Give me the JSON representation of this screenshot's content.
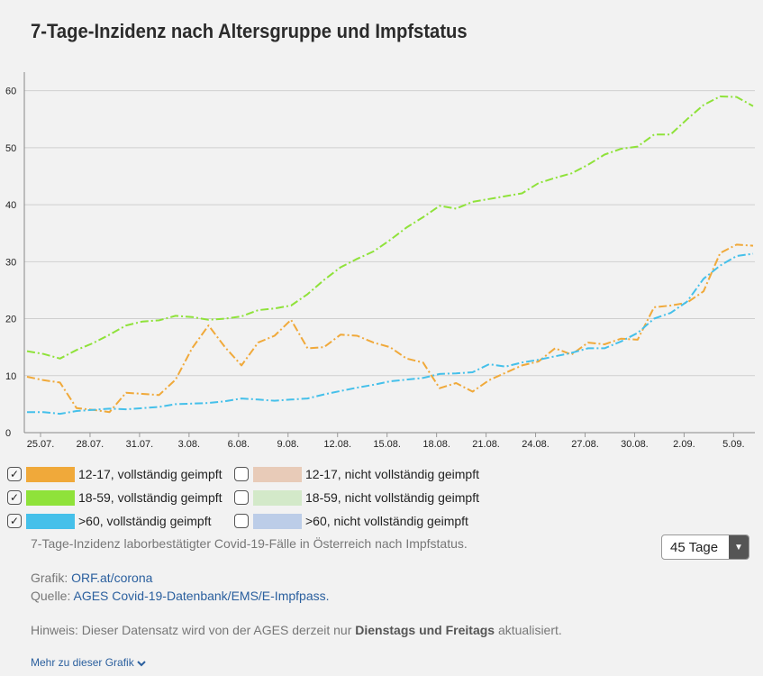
{
  "title": "7-Tage-Inzidenz nach Altersgruppe und Impfstatus",
  "chart_data": {
    "type": "line",
    "x_ticks": [
      "25.07.",
      "28.07.",
      "31.07.",
      "3.08.",
      "6.08.",
      "9.08.",
      "12.08.",
      "15.08.",
      "18.08.",
      "21.08.",
      "24.08.",
      "27.08.",
      "30.08.",
      "2.09.",
      "5.09."
    ],
    "y_ticks": [
      "0",
      "10",
      "20",
      "30",
      "40",
      "50",
      "60"
    ],
    "ylim": [
      0,
      62
    ],
    "grid": true,
    "series": [
      {
        "name": "18-59, vollständig geimpft",
        "color": "#8fe23a",
        "dash": "dashdot",
        "values": [
          14.3,
          13.8,
          13.0,
          14.5,
          15.7,
          17.2,
          18.8,
          19.5,
          19.7,
          20.5,
          20.3,
          19.8,
          20.0,
          20.4,
          21.5,
          21.8,
          22.3,
          24.3,
          26.8,
          29.0,
          30.5,
          31.8,
          33.8,
          36.0,
          37.8,
          39.8,
          39.3,
          40.5,
          41.0,
          41.5,
          42.0,
          43.8,
          44.7,
          45.5,
          47.0,
          48.8,
          49.8,
          50.2,
          52.3,
          52.3,
          55.0,
          57.5,
          59.0,
          58.9,
          57.3
        ]
      },
      {
        "name": "12-17, vollständig geimpft",
        "color": "#f0a93a",
        "dash": "dashdot",
        "values": [
          9.8,
          9.2,
          8.8,
          4.3,
          4.0,
          3.6,
          7.0,
          6.8,
          6.6,
          9.3,
          14.8,
          18.8,
          15.0,
          11.8,
          15.8,
          17.0,
          19.8,
          14.8,
          15.0,
          17.2,
          17.0,
          15.8,
          15.0,
          13.0,
          12.3,
          7.8,
          8.7,
          7.2,
          9.2,
          10.5,
          11.8,
          12.5,
          14.8,
          13.7,
          15.8,
          15.5,
          16.5,
          16.3,
          22.0,
          22.3,
          22.8,
          24.8,
          31.5,
          33.0,
          32.8
        ]
      },
      {
        "name": ">60, vollständig geimpft",
        "color": "#45c0ea",
        "dash": "dashdot",
        "values": [
          3.6,
          3.6,
          3.3,
          3.8,
          4.0,
          4.2,
          4.1,
          4.3,
          4.5,
          5.0,
          5.1,
          5.2,
          5.5,
          6.0,
          5.8,
          5.6,
          5.8,
          6.0,
          6.7,
          7.3,
          7.9,
          8.4,
          9.0,
          9.3,
          9.6,
          10.3,
          10.4,
          10.6,
          12.0,
          11.6,
          12.3,
          12.8,
          13.4,
          14.0,
          14.8,
          14.8,
          16.0,
          17.5,
          20.0,
          21.0,
          23.0,
          27.0,
          29.3,
          31.0,
          31.4
        ]
      },
      {
        "name": "12-17, nicht vollständig geimpft",
        "color": "#e8cbb8",
        "hidden": true,
        "values": []
      },
      {
        "name": "18-59, nicht vollständig geimpft",
        "color": "#d3e9c9",
        "hidden": true,
        "values": []
      },
      {
        "name": ">60, nicht vollständig geimpft",
        "color": "#bccde8",
        "hidden": true,
        "values": []
      }
    ]
  },
  "legend": [
    {
      "label": "12-17, vollständig geimpft",
      "checked": true,
      "color": "#f0a93a"
    },
    {
      "label": "12-17, nicht vollständig geimpft",
      "checked": false,
      "color": "#e8cbb8"
    },
    {
      "label": "18-59, vollständig geimpft",
      "checked": true,
      "color": "#8fe23a"
    },
    {
      "label": "18-59, nicht vollständig geimpft",
      "checked": false,
      "color": "#d3e9c9"
    },
    {
      "label": ">60, vollständig geimpft",
      "checked": true,
      "color": "#45c0ea"
    },
    {
      "label": ">60, nicht vollständig geimpft",
      "checked": false,
      "color": "#bccde8"
    }
  ],
  "checkmark": "✓",
  "description": "7-Tage-Inzidenz laborbestätigter Covid-19-Fälle in Österreich nach Impfstatus.",
  "range_select": {
    "value": "45 Tage",
    "arrow": "▼"
  },
  "credits": {
    "grafik_label": "Grafik:",
    "grafik_link": "ORF.at/corona",
    "quelle_label": "Quelle:",
    "quelle_link": "AGES Covid-19-Datenbank/EMS/E-Impfpass."
  },
  "hinweis": {
    "prefix": "Hinweis: Dieser Datensatz wird von der AGES derzeit nur",
    "bold": "Dienstags und Freitags",
    "suffix": "aktualisiert."
  },
  "more_link": {
    "label": "Mehr zu dieser Grafik",
    "icon": "chevron-down-icon"
  }
}
